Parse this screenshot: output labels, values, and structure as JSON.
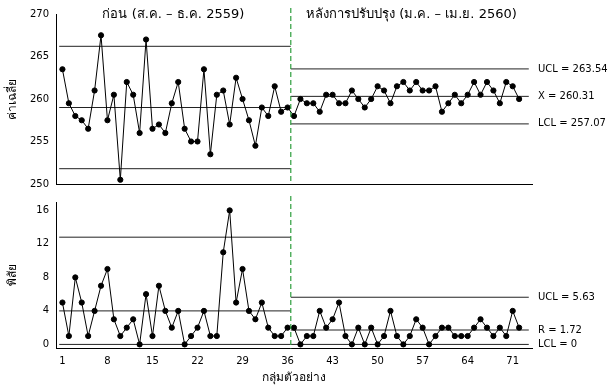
{
  "chart_data": [
    {
      "type": "line",
      "annotations": [
        "ก่อน (ส.ค. – ธ.ค. 2559)",
        "หลังการปรับปรุง (ม.ค. – เม.ย. 2560)"
      ],
      "y_label": "ค่าเฉลี่ย",
      "x": [
        1,
        2,
        3,
        4,
        5,
        6,
        7,
        8,
        9,
        10,
        11,
        12,
        13,
        14,
        15,
        16,
        17,
        18,
        19,
        20,
        21,
        22,
        23,
        24,
        25,
        26,
        27,
        28,
        29,
        30,
        31,
        32,
        33,
        34,
        35,
        36,
        37,
        38,
        39,
        40,
        41,
        42,
        43,
        44,
        45,
        46,
        47,
        48,
        49,
        50,
        51,
        52,
        53,
        54,
        55,
        56,
        57,
        58,
        59,
        60,
        61,
        62,
        63,
        64,
        65,
        66,
        67,
        68,
        69,
        70,
        71,
        72
      ],
      "values": [
        263.5,
        259.5,
        258,
        257.5,
        256.5,
        261,
        267.5,
        257.5,
        260.5,
        250.5,
        262,
        260.5,
        256,
        267,
        256.5,
        257,
        256,
        259.5,
        262,
        256.5,
        255,
        255,
        263.5,
        253.5,
        260.5,
        261,
        257,
        262.5,
        260,
        257.5,
        254.5,
        259,
        258,
        261.5,
        258.5,
        259,
        258,
        260,
        259.5,
        259.5,
        258.5,
        260.5,
        260.5,
        259.5,
        259.5,
        261,
        260,
        259,
        260,
        261.5,
        261,
        259.5,
        261.5,
        262,
        261,
        262,
        261,
        261,
        261.5,
        258.5,
        259.5,
        260.5,
        259.5,
        260.5,
        262,
        260.5,
        262,
        261,
        259.5,
        262,
        261.5,
        260
      ],
      "color": "#000000",
      "marker": "circle",
      "xlim": [
        0,
        74
      ],
      "xticks": [
        1,
        8,
        15,
        22,
        29,
        36,
        43,
        50,
        57,
        64,
        71
      ],
      "ylim": [
        250,
        270
      ],
      "yticks": [
        250,
        255,
        260,
        265,
        270
      ],
      "tick_labels": "y",
      "grid": false,
      "divider_x": 36.5,
      "limit_lines": [
        {
          "x": [
            0.5,
            36.5
          ],
          "y": 266.2
        },
        {
          "x": [
            0.5,
            36.5
          ],
          "y": 259
        },
        {
          "x": [
            0.5,
            36.5
          ],
          "y": 251.8
        },
        {
          "x": [
            36.5,
            73.5
          ],
          "y": 263.54,
          "label": "UCL = 263.54"
        },
        {
          "x": [
            36.5,
            73.5
          ],
          "y": 260.31,
          "label": "X = 260.31"
        },
        {
          "x": [
            36.5,
            73.5
          ],
          "y": 257.07,
          "label": "LCL = 257.07"
        }
      ]
    },
    {
      "type": "line",
      "y_label": "พิสัย",
      "x_label": "กลุ่มตัวอย่าง",
      "x": [
        1,
        2,
        3,
        4,
        5,
        6,
        7,
        8,
        9,
        10,
        11,
        12,
        13,
        14,
        15,
        16,
        17,
        18,
        19,
        20,
        21,
        22,
        23,
        24,
        25,
        26,
        27,
        28,
        29,
        30,
        31,
        32,
        33,
        34,
        35,
        36,
        37,
        38,
        39,
        40,
        41,
        42,
        43,
        44,
        45,
        46,
        47,
        48,
        49,
        50,
        51,
        52,
        53,
        54,
        55,
        56,
        57,
        58,
        59,
        60,
        61,
        62,
        63,
        64,
        65,
        66,
        67,
        68,
        69,
        70,
        71,
        72
      ],
      "values": [
        5,
        1,
        8,
        5,
        1,
        4,
        7,
        9,
        3,
        1,
        2,
        3,
        0,
        6,
        1,
        7,
        4,
        2,
        4,
        0,
        1,
        2,
        4,
        1,
        1,
        11,
        16,
        5,
        9,
        4,
        3,
        5,
        2,
        1,
        1,
        2,
        2,
        0,
        1,
        1,
        4,
        2,
        3,
        5,
        1,
        0,
        2,
        0,
        2,
        0,
        1,
        4,
        1,
        0,
        1,
        3,
        2,
        0,
        1,
        2,
        2,
        1,
        1,
        1,
        2,
        3,
        2,
        1,
        2,
        1,
        4,
        2
      ],
      "color": "#000000",
      "marker": "circle",
      "xlim": [
        0,
        74
      ],
      "xticks": [
        1,
        8,
        15,
        22,
        29,
        36,
        43,
        50,
        57,
        64,
        71
      ],
      "ylim": [
        -0.5,
        17
      ],
      "yticks": [
        0,
        4,
        8,
        12,
        16
      ],
      "grid": false,
      "divider_x": 36.5,
      "limit_lines": [
        {
          "x": [
            0.5,
            36.5
          ],
          "y": 12.8
        },
        {
          "x": [
            0.5,
            36.5
          ],
          "y": 4
        },
        {
          "x": [
            0.5,
            36.5
          ],
          "y": 0
        },
        {
          "x": [
            36.5,
            73.5
          ],
          "y": 5.63,
          "label": "UCL = 5.63"
        },
        {
          "x": [
            36.5,
            73.5
          ],
          "y": 1.72,
          "label": "R = 1.72"
        },
        {
          "x": [
            36.5,
            73.5
          ],
          "y": 0,
          "label": "LCL = 0"
        }
      ]
    }
  ]
}
